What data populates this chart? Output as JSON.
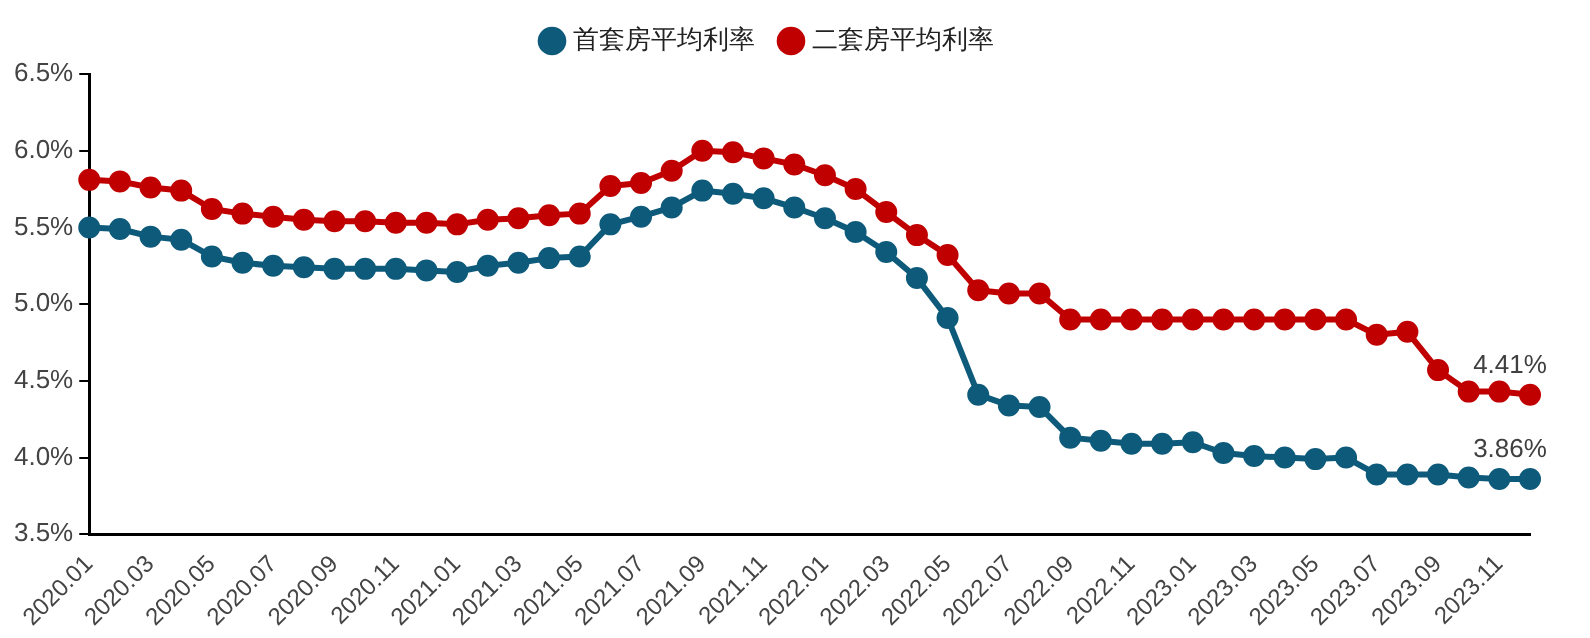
{
  "chart_data": {
    "type": "line",
    "categories": [
      "2020.01",
      null,
      "2020.03",
      null,
      "2020.05",
      null,
      "2020.07",
      null,
      "2020.09",
      null,
      "2020.11",
      null,
      "2021.01",
      null,
      "2021.03",
      null,
      "2021.05",
      null,
      "2021.07",
      null,
      "2021.09",
      null,
      "2021.11",
      null,
      "2022.01",
      null,
      "2022.03",
      null,
      "2022.05",
      null,
      "2022.07",
      null,
      "2022.09",
      null,
      "2022.11",
      null,
      "2023.01",
      null,
      "2023.03",
      null,
      "2023.05",
      null,
      "2023.07",
      null,
      "2023.09",
      null,
      "2023.11",
      null
    ],
    "series": [
      {
        "name": "首套房平均利率",
        "color": "#0e5a7a",
        "values": [
          5.5,
          5.49,
          5.44,
          5.42,
          5.31,
          5.27,
          5.25,
          5.24,
          5.23,
          5.23,
          5.23,
          5.22,
          5.21,
          5.25,
          5.27,
          5.3,
          5.31,
          5.52,
          5.57,
          5.63,
          5.74,
          5.72,
          5.69,
          5.63,
          5.56,
          5.47,
          5.34,
          5.17,
          4.91,
          4.41,
          4.34,
          4.33,
          4.13,
          4.11,
          4.09,
          4.09,
          4.1,
          4.03,
          4.01,
          4.0,
          3.99,
          4.0,
          3.89,
          3.89,
          3.89,
          3.87,
          3.86,
          3.86
        ]
      },
      {
        "name": "二套房平均利率",
        "color": "#c00000",
        "values": [
          5.81,
          5.8,
          5.76,
          5.74,
          5.62,
          5.59,
          5.57,
          5.55,
          5.54,
          5.54,
          5.53,
          5.53,
          5.52,
          5.55,
          5.56,
          5.58,
          5.59,
          5.77,
          5.79,
          5.87,
          6.0,
          5.99,
          5.95,
          5.91,
          5.84,
          5.75,
          5.6,
          5.45,
          5.32,
          5.09,
          5.07,
          5.07,
          4.9,
          4.9,
          4.9,
          4.9,
          4.9,
          4.9,
          4.9,
          4.9,
          4.9,
          4.9,
          4.8,
          4.82,
          4.57,
          4.43,
          4.43,
          4.41
        ]
      }
    ],
    "ylim": [
      3.5,
      6.5
    ],
    "yticks": [
      {
        "value": 3.5,
        "label": "3.5%"
      },
      {
        "value": 4.0,
        "label": "4.0%"
      },
      {
        "value": 4.5,
        "label": "4.5%"
      },
      {
        "value": 5.0,
        "label": "5.0%"
      },
      {
        "value": 5.5,
        "label": "5.5%"
      },
      {
        "value": 6.0,
        "label": "6.0%"
      },
      {
        "value": 6.5,
        "label": "6.5%"
      }
    ],
    "annotations": [
      {
        "text": "4.41%",
        "y": 4.41
      },
      {
        "text": "3.86%",
        "y": 3.86
      }
    ],
    "legend": "top",
    "marker": "circle",
    "line_style": "solid",
    "grid": false
  }
}
